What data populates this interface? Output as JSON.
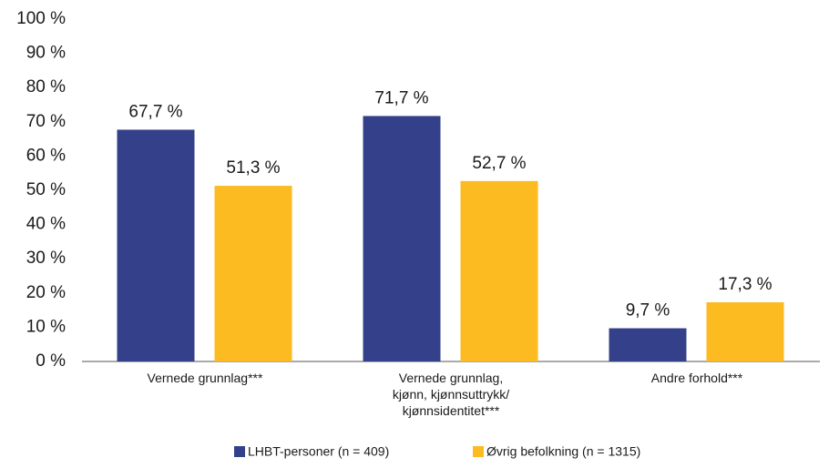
{
  "chart_data": {
    "type": "bar",
    "categories": [
      "Vernede grunnlag***",
      "Vernede grunnlag,\nkjønn, kjønnsuttrykk/\nkjønnsidentitet***",
      "Andre forhold***"
    ],
    "series": [
      {
        "name": "LHBT-personer (n = 409)",
        "color": "#34418a",
        "values": [
          67.7,
          71.7,
          9.7
        ],
        "value_labels": [
          "67,7 %",
          "71,7 %",
          "9,7 %"
        ]
      },
      {
        "name": "Øvrig befolkning (n = 1315)",
        "color": "#fbbb21",
        "values": [
          51.3,
          52.7,
          17.3
        ],
        "value_labels": [
          "51,3 %",
          "52,7 %",
          "17,3 %"
        ]
      }
    ],
    "ylim": [
      0,
      100
    ],
    "yticks": [
      {
        "value": 0,
        "label": "0 %"
      },
      {
        "value": 10,
        "label": "10 %"
      },
      {
        "value": 20,
        "label": "20 %"
      },
      {
        "value": 30,
        "label": "30 %"
      },
      {
        "value": 40,
        "label": "40 %"
      },
      {
        "value": 50,
        "label": "50 %"
      },
      {
        "value": 60,
        "label": "60 %"
      },
      {
        "value": 70,
        "label": "70 %"
      },
      {
        "value": 80,
        "label": "80 %"
      },
      {
        "value": 90,
        "label": "90 %"
      },
      {
        "value": 100,
        "label": "100 %"
      }
    ],
    "grid": false,
    "legend": "bottom"
  }
}
